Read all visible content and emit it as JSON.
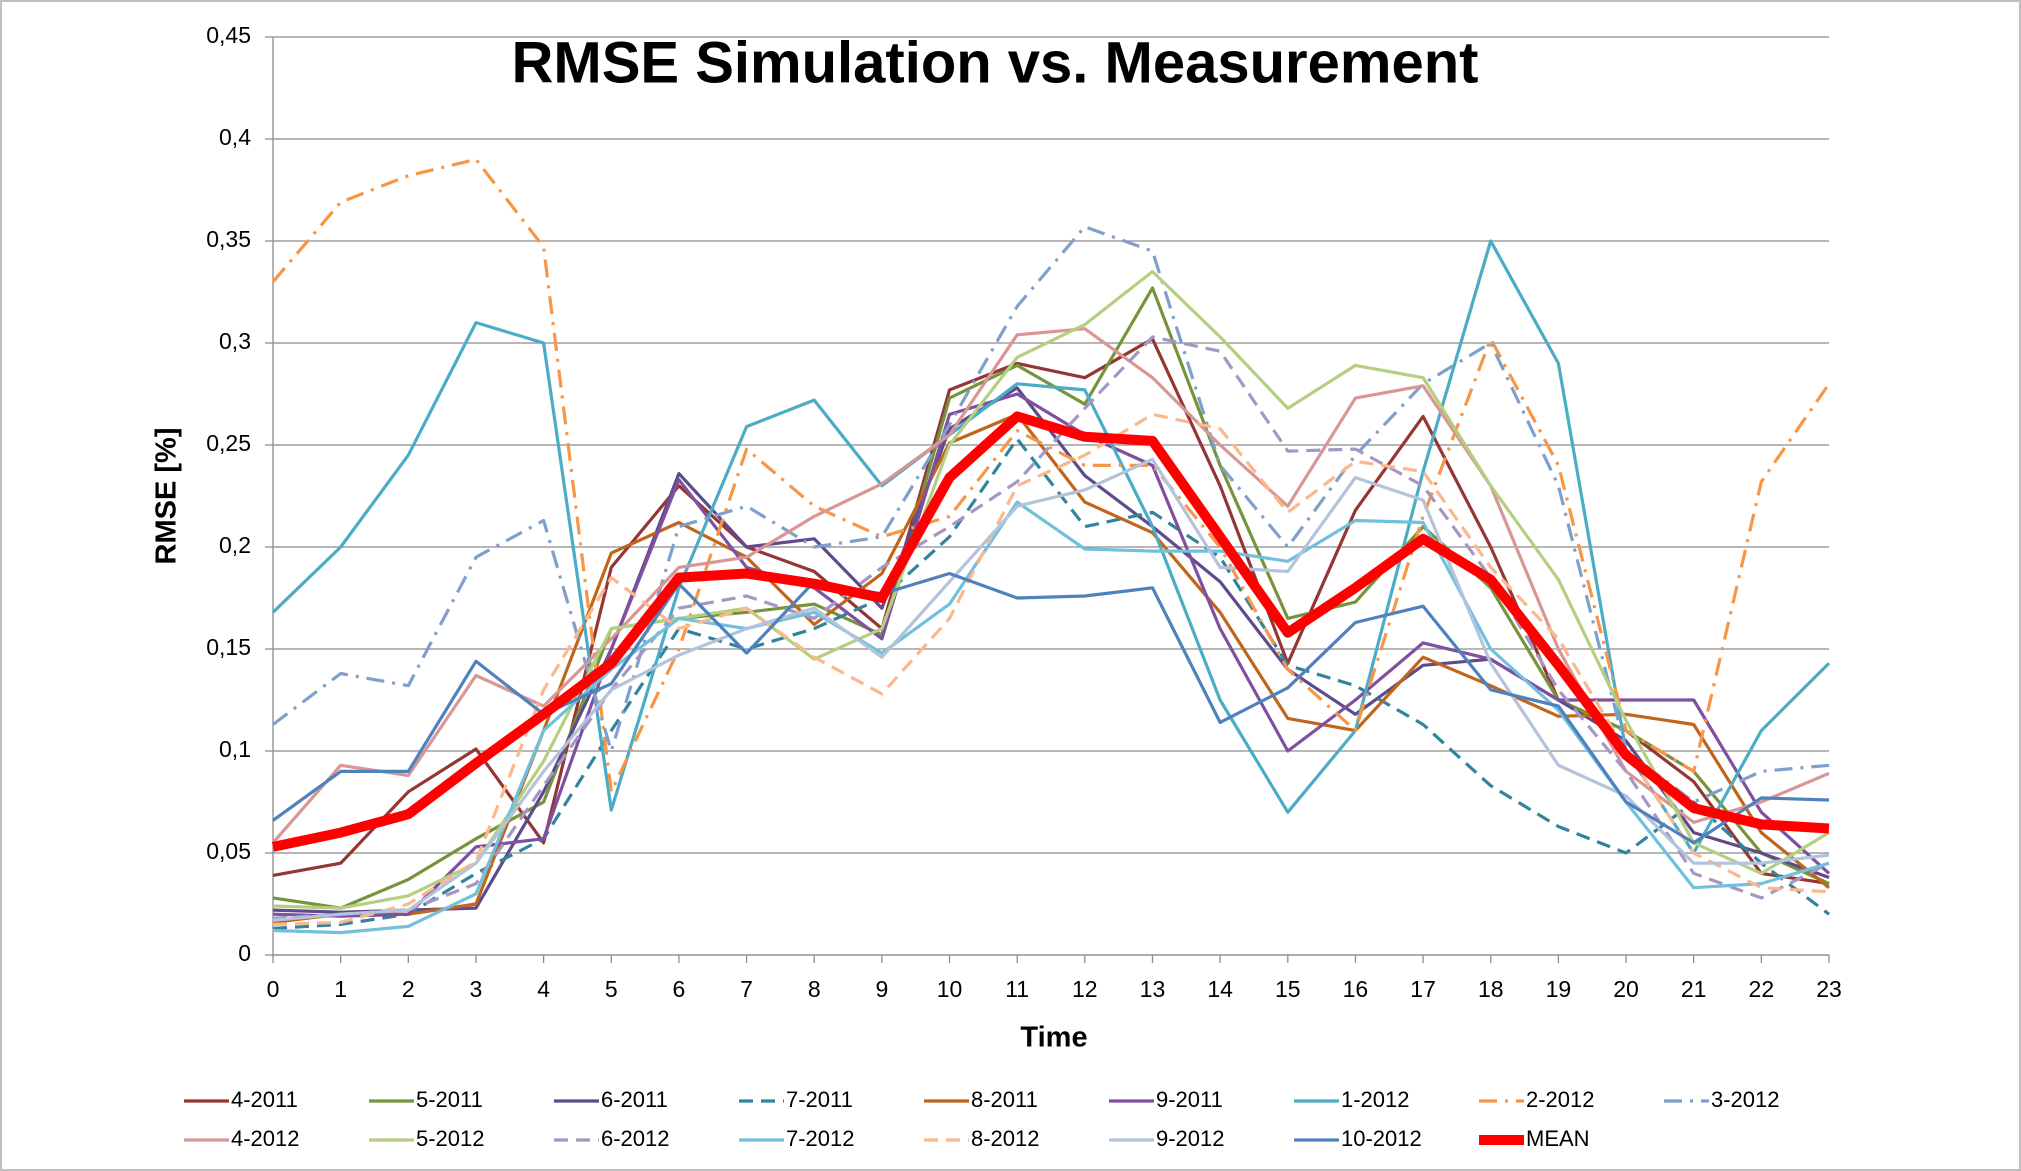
{
  "chart_data": {
    "type": "line",
    "title": "RMSE Simulation vs. Measurement",
    "xlabel": "Time",
    "ylabel": "RMSE [%]",
    "x": [
      0,
      1,
      2,
      3,
      4,
      5,
      6,
      7,
      8,
      9,
      10,
      11,
      12,
      13,
      14,
      15,
      16,
      17,
      18,
      19,
      20,
      21,
      22,
      23
    ],
    "xlim": [
      0,
      23
    ],
    "xticks": [
      0,
      1,
      2,
      3,
      4,
      5,
      6,
      7,
      8,
      9,
      10,
      11,
      12,
      13,
      14,
      15,
      16,
      17,
      18,
      19,
      20,
      21,
      22,
      23
    ],
    "ylim": [
      0,
      0.45
    ],
    "yticks": [
      0,
      {
        "value": 0.05,
        "label": "0,05"
      },
      {
        "value": 0.1,
        "label": "0,1"
      },
      {
        "value": 0.15,
        "label": "0,15"
      },
      {
        "value": 0.2,
        "label": "0,2"
      },
      {
        "value": 0.25,
        "label": "0,25"
      },
      {
        "value": 0.3,
        "label": "0,3"
      },
      {
        "value": 0.35,
        "label": "0,35"
      },
      {
        "value": 0.4,
        "label": "0,4"
      },
      {
        "value": 0.45,
        "label": "0,45"
      }
    ],
    "grid": true,
    "legend": "bottom",
    "series": [
      {
        "name": "4-2011",
        "color": "#943634",
        "dash": "solid",
        "values": [
          0.039,
          0.045,
          0.08,
          0.101,
          0.055,
          0.19,
          0.23,
          0.2,
          0.188,
          0.16,
          0.277,
          0.29,
          0.283,
          0.302,
          0.23,
          0.143,
          0.218,
          0.264,
          0.2,
          0.125,
          0.11,
          0.085,
          0.04,
          0.035
        ]
      },
      {
        "name": "5-2011",
        "color": "#77933c",
        "dash": "solid",
        "values": [
          0.028,
          0.023,
          0.037,
          0.057,
          0.075,
          0.16,
          0.165,
          0.168,
          0.172,
          0.157,
          0.273,
          0.289,
          0.27,
          0.327,
          0.24,
          0.165,
          0.173,
          0.21,
          0.18,
          0.125,
          0.11,
          0.09,
          0.05,
          0.035
        ]
      },
      {
        "name": "6-2011",
        "color": "#5f4b8b",
        "dash": "solid",
        "values": [
          0.022,
          0.021,
          0.022,
          0.023,
          0.08,
          0.15,
          0.236,
          0.2,
          0.204,
          0.17,
          0.258,
          0.278,
          0.235,
          0.21,
          0.183,
          0.14,
          0.118,
          0.142,
          0.145,
          0.125,
          0.105,
          0.06,
          0.05,
          0.038
        ]
      },
      {
        "name": "7-2011",
        "color": "#31849b",
        "dash": "dash",
        "values": [
          0.013,
          0.015,
          0.02,
          0.04,
          0.057,
          0.11,
          0.16,
          0.15,
          0.16,
          0.175,
          0.205,
          0.253,
          0.21,
          0.217,
          0.195,
          0.142,
          0.132,
          0.113,
          0.083,
          0.063,
          0.05,
          0.075,
          0.045,
          0.02
        ]
      },
      {
        "name": "8-2011",
        "color": "#c0651b",
        "dash": "solid",
        "values": [
          0.016,
          0.02,
          0.02,
          0.025,
          0.11,
          0.197,
          0.212,
          0.195,
          0.162,
          0.187,
          0.251,
          0.265,
          0.222,
          0.207,
          0.168,
          0.116,
          0.11,
          0.146,
          0.132,
          0.117,
          0.118,
          0.113,
          0.06,
          0.033
        ]
      },
      {
        "name": "9-2011",
        "color": "#7f4fa0",
        "dash": "solid",
        "values": [
          0.02,
          0.019,
          0.02,
          0.053,
          0.057,
          0.15,
          0.233,
          0.19,
          0.18,
          0.155,
          0.265,
          0.275,
          0.255,
          0.24,
          0.16,
          0.1,
          0.125,
          0.153,
          0.145,
          0.125,
          0.125,
          0.125,
          0.07,
          0.04
        ]
      },
      {
        "name": "1-2012",
        "color": "#4bacc6",
        "dash": "solid",
        "values": [
          0.168,
          0.2,
          0.245,
          0.31,
          0.3,
          0.071,
          0.18,
          0.259,
          0.272,
          0.23,
          0.255,
          0.28,
          0.277,
          0.21,
          0.125,
          0.07,
          0.11,
          0.237,
          0.35,
          0.29,
          0.1,
          0.05,
          0.11,
          0.143
        ]
      },
      {
        "name": "2-2012",
        "color": "#f79646",
        "dash": "dashdot",
        "values": [
          0.33,
          0.369,
          0.382,
          0.39,
          0.347,
          0.08,
          0.15,
          0.248,
          0.22,
          0.205,
          0.215,
          0.257,
          0.24,
          0.24,
          0.2,
          0.14,
          0.11,
          0.215,
          0.302,
          0.24,
          0.11,
          0.09,
          0.232,
          0.28
        ]
      },
      {
        "name": "3-2012",
        "color": "#7f9fcc",
        "dash": "dashdot",
        "values": [
          0.113,
          0.138,
          0.132,
          0.195,
          0.213,
          0.1,
          0.21,
          0.22,
          0.2,
          0.205,
          0.26,
          0.318,
          0.357,
          0.345,
          0.24,
          0.2,
          0.245,
          0.28,
          0.3,
          0.23,
          0.1,
          0.075,
          0.09,
          0.093
        ]
      },
      {
        "name": "4-2012",
        "color": "#d99694",
        "dash": "solid",
        "values": [
          0.055,
          0.093,
          0.088,
          0.137,
          0.122,
          0.155,
          0.19,
          0.195,
          0.215,
          0.231,
          0.255,
          0.304,
          0.307,
          0.283,
          0.25,
          0.22,
          0.273,
          0.279,
          0.23,
          0.15,
          0.09,
          0.065,
          0.075,
          0.089
        ]
      },
      {
        "name": "5-2012",
        "color": "#b3cf7f",
        "dash": "solid",
        "values": [
          0.024,
          0.023,
          0.029,
          0.045,
          0.095,
          0.16,
          0.165,
          0.17,
          0.145,
          0.16,
          0.25,
          0.293,
          0.309,
          0.335,
          0.303,
          0.268,
          0.289,
          0.283,
          0.23,
          0.184,
          0.115,
          0.055,
          0.04,
          0.06
        ]
      },
      {
        "name": "6-2012",
        "color": "#a596c4",
        "dash": "dash",
        "values": [
          0.018,
          0.02,
          0.022,
          0.035,
          0.083,
          0.13,
          0.17,
          0.176,
          0.165,
          0.19,
          0.21,
          0.232,
          0.268,
          0.303,
          0.296,
          0.247,
          0.248,
          0.23,
          0.185,
          0.13,
          0.09,
          0.04,
          0.028,
          0.045
        ]
      },
      {
        "name": "7-2012",
        "color": "#71c0dc",
        "dash": "solid",
        "values": [
          0.012,
          0.011,
          0.014,
          0.03,
          0.11,
          0.14,
          0.165,
          0.16,
          0.168,
          0.148,
          0.172,
          0.222,
          0.199,
          0.198,
          0.198,
          0.193,
          0.213,
          0.212,
          0.15,
          0.12,
          0.075,
          0.033,
          0.035,
          0.045
        ]
      },
      {
        "name": "8-2012",
        "color": "#fab88c",
        "dash": "dash",
        "values": [
          0.015,
          0.016,
          0.025,
          0.046,
          0.13,
          0.185,
          0.16,
          0.17,
          0.146,
          0.128,
          0.165,
          0.23,
          0.245,
          0.265,
          0.258,
          0.217,
          0.242,
          0.237,
          0.19,
          0.155,
          0.1,
          0.05,
          0.033,
          0.031
        ]
      },
      {
        "name": "9-2012",
        "color": "#b4c3dc",
        "dash": "solid",
        "values": [
          0.017,
          0.02,
          0.022,
          0.045,
          0.09,
          0.13,
          0.147,
          0.16,
          0.17,
          0.146,
          0.183,
          0.22,
          0.228,
          0.243,
          0.19,
          0.188,
          0.234,
          0.223,
          0.143,
          0.093,
          0.078,
          0.045,
          0.045,
          0.049
        ]
      },
      {
        "name": "10-2012",
        "color": "#4f81bd",
        "dash": "solid",
        "values": [
          0.066,
          0.09,
          0.09,
          0.144,
          0.118,
          0.133,
          0.182,
          0.148,
          0.183,
          0.177,
          0.187,
          0.175,
          0.176,
          0.18,
          0.114,
          0.131,
          0.163,
          0.171,
          0.13,
          0.122,
          0.075,
          0.055,
          0.077,
          0.076
        ]
      },
      {
        "name": "MEAN",
        "color": "#ff0000",
        "dash": "solid",
        "width": 10,
        "values": [
          0.053,
          0.06,
          0.069,
          0.094,
          0.118,
          0.143,
          0.185,
          0.187,
          0.182,
          0.175,
          0.234,
          0.264,
          0.254,
          0.252,
          0.205,
          0.158,
          0.18,
          0.204,
          0.184,
          0.142,
          0.098,
          0.072,
          0.064,
          0.062
        ]
      }
    ]
  }
}
